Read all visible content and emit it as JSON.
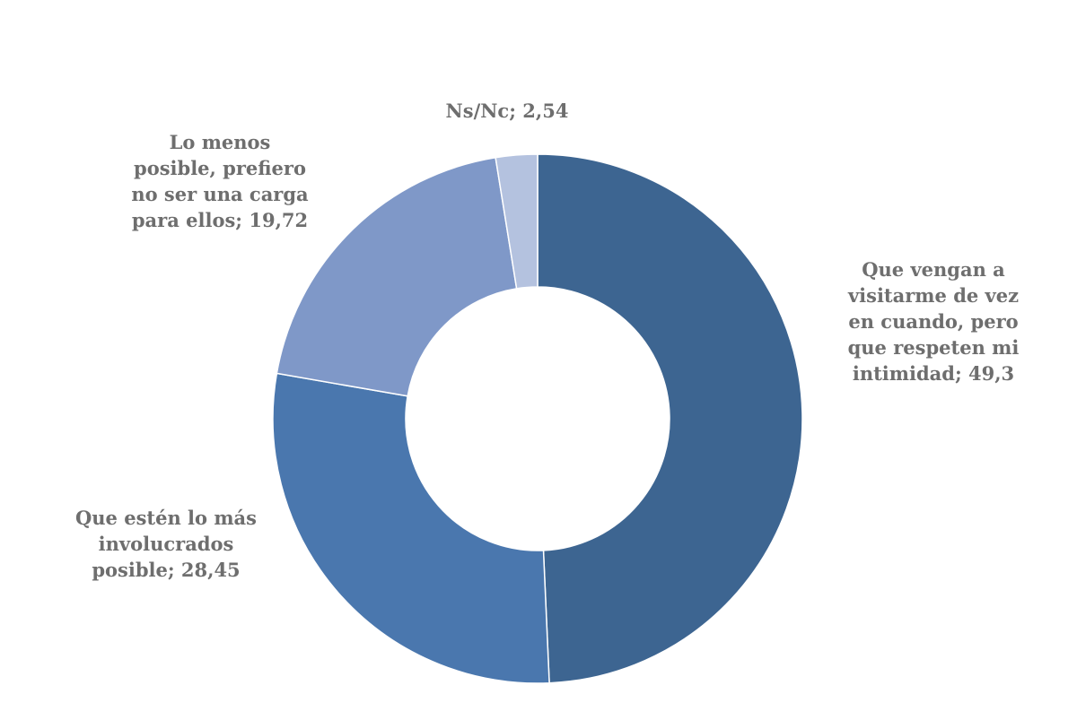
{
  "chart_data": {
    "type": "pie",
    "variant": "doughnut",
    "title": "",
    "categories": [
      "Que vengan a visitarme de vez en cuando, pero que respeten mi intimidad",
      "Que estén lo más involucrados posible",
      "Lo menos posible, prefiero no ser una carga para ellos",
      "Ns/Nc"
    ],
    "values": [
      49.3,
      28.45,
      19.72,
      2.54
    ],
    "colors": [
      "#3d6591",
      "#4a77ae",
      "#7f98c8",
      "#b4c2df"
    ],
    "data_labels": [
      "Que vengan a visitarme de vez en cuando, pero que respeten mi intimidad; 49,3",
      "Que estén lo más involucrados posible; 28,45",
      "Lo menos posible, prefiero no ser una carga para ellos; 19,72",
      "Ns/Nc; 2,54"
    ],
    "legend": "none",
    "start_angle_deg": 0,
    "direction": "clockwise"
  },
  "labels": {
    "visit": [
      "Que vengan a",
      "visitarme de vez",
      "en cuando, pero",
      "que respeten mi",
      "intimidad; 49,3"
    ],
    "involved": [
      "Que estén lo más",
      "involucrados",
      "posible; 28,45"
    ],
    "least": [
      "Lo menos",
      "posible, prefiero",
      "no ser una carga",
      "para ellos; 19,72"
    ],
    "nsnc": [
      "Ns/Nc; 2,54"
    ]
  }
}
